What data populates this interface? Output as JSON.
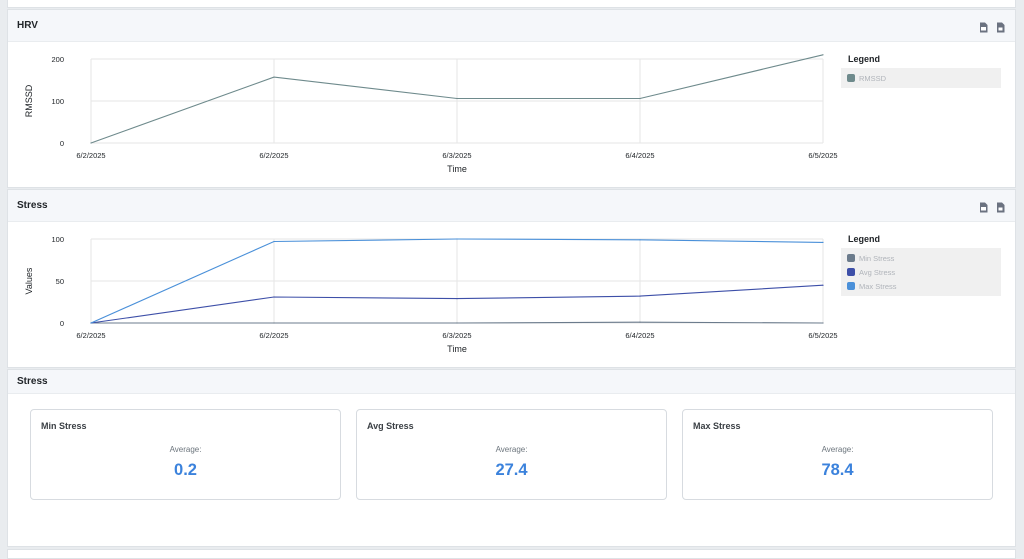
{
  "hrv_panel": {
    "title": "HRV",
    "legend_title": "Legend",
    "chart_data": {
      "type": "line",
      "title": "",
      "xlabel": "Time",
      "ylabel": "RMSSD",
      "x": [
        "6/2/2025",
        "6/2/2025",
        "6/3/2025",
        "6/4/2025",
        "6/5/2025"
      ],
      "yticks": [
        0,
        100,
        200
      ],
      "ylim": [
        0,
        200
      ],
      "grid": true,
      "legend_position": "right",
      "series": [
        {
          "name": "RMSSD",
          "color": "#6e8a8c",
          "values": [
            0,
            157,
            106,
            106,
            210
          ]
        }
      ]
    }
  },
  "stress_chart_panel": {
    "title": "Stress",
    "legend_title": "Legend",
    "chart_data": {
      "type": "line",
      "title": "",
      "xlabel": "Time",
      "ylabel": "Values",
      "x": [
        "6/2/2025",
        "6/2/2025",
        "6/3/2025",
        "6/4/2025",
        "6/5/2025"
      ],
      "yticks": [
        0,
        50,
        100
      ],
      "ylim": [
        0,
        100
      ],
      "grid": true,
      "legend_position": "right",
      "series": [
        {
          "name": "Min Stress",
          "color": "#6b7b8c",
          "values": [
            0,
            0,
            0,
            1,
            0
          ]
        },
        {
          "name": "Avg Stress",
          "color": "#3d4fa8",
          "values": [
            0,
            31,
            29,
            32,
            45
          ]
        },
        {
          "name": "Max Stress",
          "color": "#4a90d9",
          "values": [
            0,
            97,
            100,
            99,
            96
          ]
        }
      ]
    }
  },
  "stress_summary": {
    "title": "Stress",
    "cards": [
      {
        "title": "Min Stress",
        "subtitle": "Average:",
        "value": "0.2"
      },
      {
        "title": "Avg Stress",
        "subtitle": "Average:",
        "value": "27.4"
      },
      {
        "title": "Max Stress",
        "subtitle": "Average:",
        "value": "78.4"
      }
    ]
  },
  "icons": [
    "download-png-icon",
    "download-csv-icon"
  ]
}
